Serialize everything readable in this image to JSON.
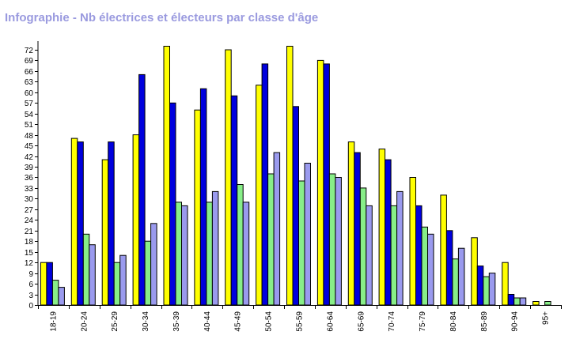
{
  "chart_data": {
    "type": "bar",
    "title": "Infographie - Nb électrices et électeurs par classe d'âge",
    "xlabel": "",
    "ylabel": "",
    "categories": [
      "18-19",
      "20-24",
      "25-29",
      "30-34",
      "35-39",
      "40-44",
      "45-49",
      "50-54",
      "55-59",
      "60-64",
      "65-69",
      "70-74",
      "75-79",
      "80-84",
      "85-89",
      "90-94",
      "95+"
    ],
    "ylim": [
      0,
      74
    ],
    "yticks": [
      0,
      3,
      6,
      9,
      12,
      15,
      18,
      21,
      24,
      27,
      30,
      33,
      36,
      39,
      42,
      45,
      48,
      51,
      54,
      57,
      60,
      63,
      66,
      69,
      72
    ],
    "grid": false,
    "legend": "none",
    "series": [
      {
        "color": "#ffff00",
        "values": [
          12,
          47,
          41,
          48,
          73,
          55,
          72,
          62,
          73,
          69,
          46,
          44,
          36,
          31,
          19,
          12,
          1
        ]
      },
      {
        "color": "#0000dd",
        "values": [
          12,
          46,
          46,
          65,
          57,
          61,
          59,
          68,
          56,
          68,
          43,
          41,
          28,
          21,
          11,
          3,
          0
        ]
      },
      {
        "color": "#88ee88",
        "values": [
          7,
          20,
          12,
          18,
          29,
          29,
          34,
          37,
          35,
          37,
          33,
          28,
          22,
          13,
          8,
          2,
          1
        ]
      },
      {
        "color": "#9a9aee",
        "values": [
          5,
          17,
          14,
          23,
          28,
          32,
          29,
          43,
          40,
          36,
          28,
          32,
          20,
          16,
          9,
          2,
          0
        ]
      }
    ]
  }
}
